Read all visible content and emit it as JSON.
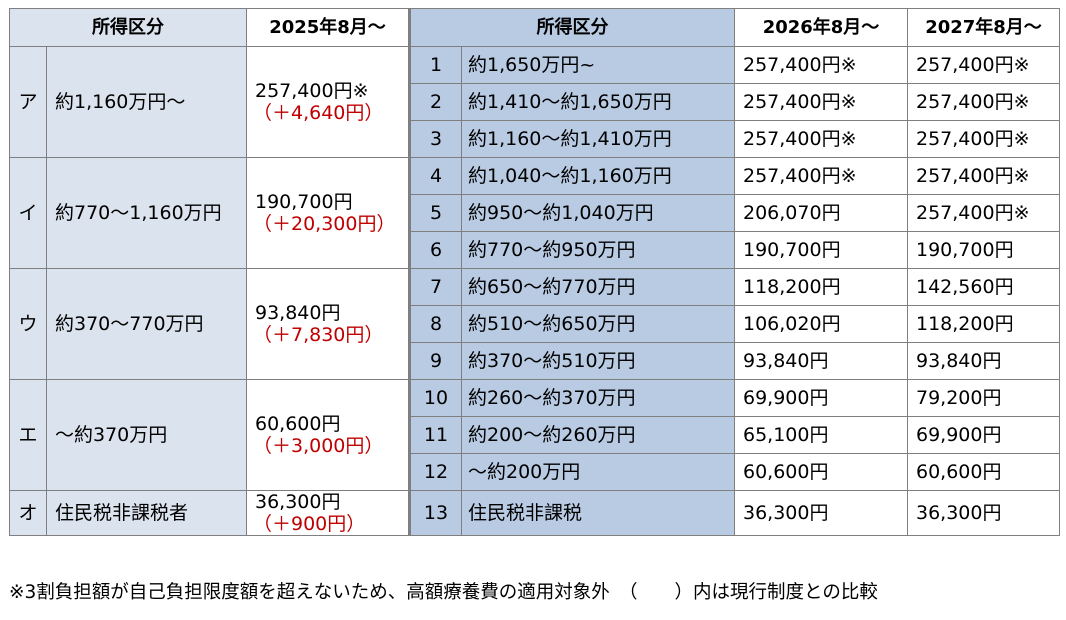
{
  "headers": {
    "left_category": "所得区分",
    "col_2025": "2025年8月～",
    "right_category": "所得区分",
    "col_2026": "2026年8月～",
    "col_2027": "2027年8月～"
  },
  "groups": [
    {
      "letter": "ア",
      "range": "約1,160万円～",
      "amount_2025": "257,400円※",
      "diff": "（＋4,640円）",
      "rows": [
        {
          "num": "1",
          "range": "約1,650万円~",
          "v2026": "257,400円※",
          "v2027": "257,400円※"
        },
        {
          "num": "2",
          "range": "約1,410～約1,650万円",
          "v2026": "257,400円※",
          "v2027": "257,400円※"
        },
        {
          "num": "3",
          "range": "約1,160～約1,410万円",
          "v2026": "257,400円※",
          "v2027": "257,400円※"
        }
      ]
    },
    {
      "letter": "イ",
      "range": "約770～1,160万円",
      "amount_2025": "190,700円",
      "diff": "（＋20,300円）",
      "rows": [
        {
          "num": "4",
          "range": "約1,040～約1,160万円",
          "v2026": "257,400円※",
          "v2027": "257,400円※"
        },
        {
          "num": "5",
          "range": "約950～約1,040万円",
          "v2026": "206,070円",
          "v2027": "257,400円※"
        },
        {
          "num": "6",
          "range": "約770～約950万円",
          "v2026": "190,700円",
          "v2027": "190,700円"
        }
      ]
    },
    {
      "letter": "ウ",
      "range": "約370～770万円",
      "amount_2025": "93,840円",
      "diff": "（＋7,830円）",
      "rows": [
        {
          "num": "7",
          "range": "約650～約770万円",
          "v2026": "118,200円",
          "v2027": "142,560円"
        },
        {
          "num": "8",
          "range": "約510～約650万円",
          "v2026": "106,020円",
          "v2027": "118,200円"
        },
        {
          "num": "9",
          "range": "約370～約510万円",
          "v2026": "93,840円",
          "v2027": "93,840円"
        }
      ]
    },
    {
      "letter": "エ",
      "range": "～約370万円",
      "amount_2025": "60,600円",
      "diff": "（＋3,000円）",
      "rows": [
        {
          "num": "10",
          "range": "約260～約370万円",
          "v2026": "69,900円",
          "v2027": "79,200円"
        },
        {
          "num": "11",
          "range": "約200～約260万円",
          "v2026": "65,100円",
          "v2027": "69,900円"
        },
        {
          "num": "12",
          "range": "～約200万円",
          "v2026": "60,600円",
          "v2027": "60,600円"
        }
      ]
    },
    {
      "letter": "オ",
      "range": "住民税非課税者",
      "amount_2025": "36,300円",
      "diff": "（＋900円）",
      "rows": [
        {
          "num": "13",
          "range": "住民税非課税",
          "v2026": "36,300円",
          "v2027": "36,300円"
        }
      ]
    }
  ],
  "footnote": "※3割負担額が自己負担限度額を超えないため、高額療養費の適用対象外　（　　）内は現行制度との比較"
}
